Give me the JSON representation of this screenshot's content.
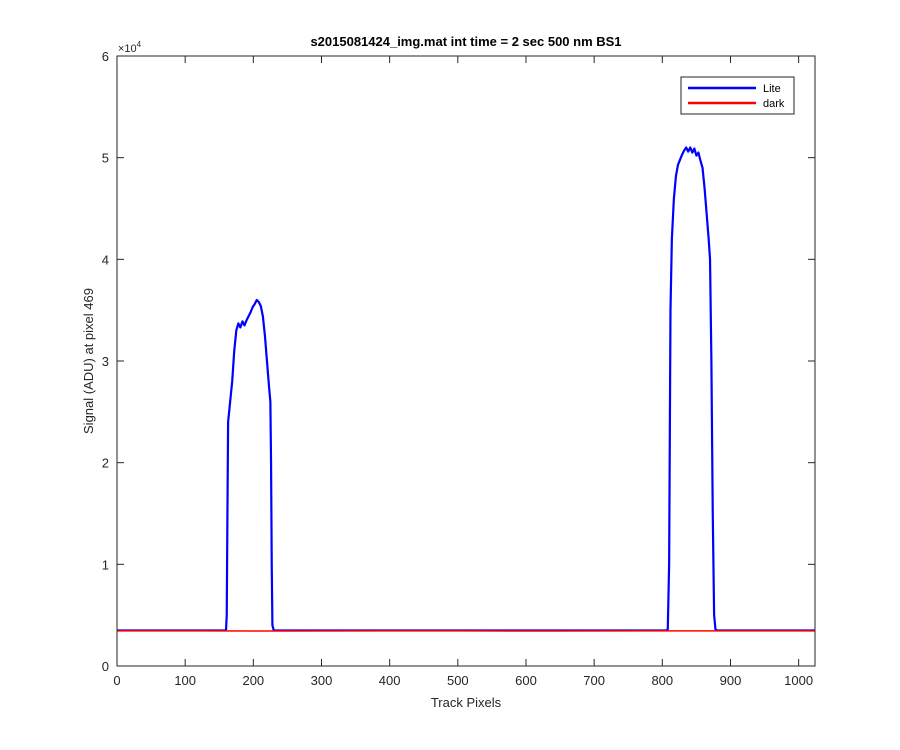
{
  "chart_data": {
    "type": "line",
    "title": "s2015081424_img.mat int time = 2 sec  500 nm BS1",
    "xlabel": "Track Pixels",
    "ylabel": "Signal (ADU) at pixel 469",
    "xlim": [
      0,
      1024
    ],
    "ylim": [
      0,
      60000
    ],
    "xticks": [
      0,
      100,
      200,
      300,
      400,
      500,
      600,
      700,
      800,
      900,
      1000
    ],
    "yticks": [
      0,
      10000,
      20000,
      30000,
      40000,
      50000,
      60000
    ],
    "ytick_labels": [
      "0",
      "1",
      "2",
      "3",
      "4",
      "5",
      "6"
    ],
    "y_multiplier": "×10",
    "y_multiplier_exp": "4",
    "grid": false,
    "legend": {
      "position": "top-right"
    },
    "series": [
      {
        "name": "Lite",
        "color": "#0000ff",
        "points": [
          [
            0,
            3500
          ],
          [
            159,
            3500
          ],
          [
            160,
            3600
          ],
          [
            161,
            5000
          ],
          [
            162,
            15000
          ],
          [
            163,
            24000
          ],
          [
            166,
            26000
          ],
          [
            169,
            28000
          ],
          [
            172,
            31000
          ],
          [
            175,
            33000
          ],
          [
            178,
            33700
          ],
          [
            181,
            33300
          ],
          [
            184,
            33900
          ],
          [
            187,
            33500
          ],
          [
            190,
            34000
          ],
          [
            193,
            34400
          ],
          [
            196,
            34800
          ],
          [
            199,
            35300
          ],
          [
            202,
            35600
          ],
          [
            205,
            36000
          ],
          [
            208,
            35800
          ],
          [
            211,
            35400
          ],
          [
            214,
            34400
          ],
          [
            217,
            32500
          ],
          [
            220,
            30000
          ],
          [
            223,
            27500
          ],
          [
            225,
            26000
          ],
          [
            226,
            20000
          ],
          [
            227,
            10000
          ],
          [
            228,
            4000
          ],
          [
            230,
            3500
          ],
          [
            806,
            3500
          ],
          [
            808,
            3600
          ],
          [
            810,
            10000
          ],
          [
            812,
            35000
          ],
          [
            814,
            42000
          ],
          [
            817,
            46000
          ],
          [
            820,
            48200
          ],
          [
            823,
            49300
          ],
          [
            826,
            49800
          ],
          [
            829,
            50300
          ],
          [
            832,
            50700
          ],
          [
            835,
            51000
          ],
          [
            838,
            50600
          ],
          [
            841,
            51000
          ],
          [
            844,
            50500
          ],
          [
            847,
            50900
          ],
          [
            850,
            50200
          ],
          [
            853,
            50500
          ],
          [
            856,
            49700
          ],
          [
            859,
            49000
          ],
          [
            862,
            47000
          ],
          [
            865,
            44500
          ],
          [
            868,
            42000
          ],
          [
            870,
            40000
          ],
          [
            872,
            30000
          ],
          [
            874,
            15000
          ],
          [
            876,
            5000
          ],
          [
            878,
            3600
          ],
          [
            880,
            3500
          ],
          [
            1024,
            3500
          ]
        ]
      },
      {
        "name": "dark",
        "color": "#ff0000",
        "points": [
          [
            0,
            3450
          ],
          [
            128,
            3460
          ],
          [
            256,
            3440
          ],
          [
            384,
            3455
          ],
          [
            512,
            3450
          ],
          [
            640,
            3445
          ],
          [
            768,
            3460
          ],
          [
            896,
            3450
          ],
          [
            1024,
            3455
          ]
        ]
      }
    ]
  }
}
